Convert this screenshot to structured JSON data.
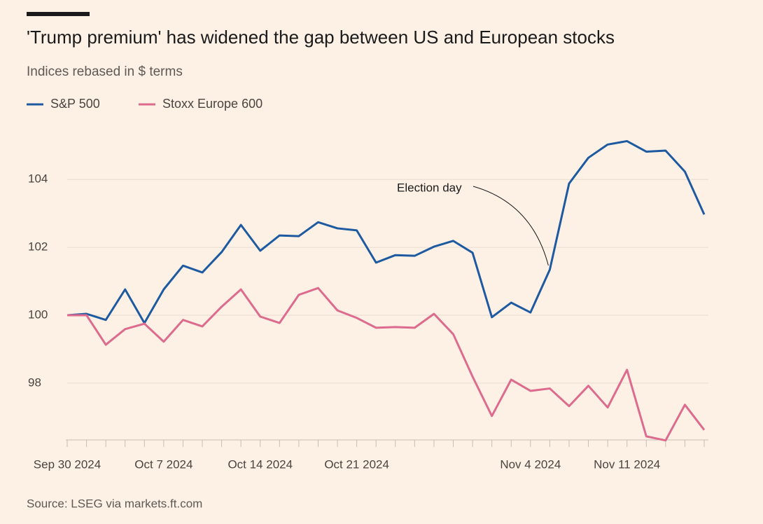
{
  "chart_data": {
    "type": "line",
    "title": "'Trump premium' has widened the gap between US and European stocks",
    "subtitle": "Indices rebased in $ terms",
    "source": "Source: LSEG via markets.ft.com",
    "annotation": "Election day",
    "categories": [
      "Sep 30 2024",
      null,
      null,
      null,
      null,
      "Oct 7 2024",
      null,
      null,
      null,
      null,
      "Oct 14 2024",
      null,
      null,
      null,
      null,
      "Oct 21 2024",
      null,
      null,
      null,
      null,
      null,
      null,
      null,
      null,
      "Nov 4 2024",
      null,
      null,
      null,
      null,
      "Nov 11 2024",
      null,
      null,
      null,
      null
    ],
    "series": [
      {
        "name": "S&P 500",
        "color": "#1e5aa0",
        "values": [
          100,
          100.04,
          99.86,
          100.76,
          99.77,
          100.76,
          101.46,
          101.26,
          101.86,
          102.66,
          101.9,
          102.35,
          102.33,
          102.74,
          102.56,
          102.5,
          101.55,
          101.77,
          101.75,
          102.02,
          102.19,
          101.84,
          99.94,
          100.37,
          100.08,
          101.34,
          103.88,
          104.64,
          105.03,
          105.13,
          104.82,
          104.85,
          104.23,
          102.97
        ]
      },
      {
        "name": "Stoxx Europe 600",
        "color": "#dd6b8e",
        "values": [
          100,
          100,
          99.13,
          99.59,
          99.75,
          99.22,
          99.86,
          99.67,
          100.25,
          100.76,
          99.96,
          99.77,
          100.6,
          100.8,
          100.14,
          99.92,
          99.63,
          99.65,
          99.63,
          100.04,
          99.44,
          98.19,
          97.03,
          98.1,
          97.77,
          97.84,
          97.32,
          97.92,
          97.28,
          98.39,
          96.43,
          96.31,
          97.36,
          96.62
        ]
      }
    ],
    "ylim": [
      96.2,
      105.8
    ],
    "yticks": [
      98,
      100,
      102,
      104
    ],
    "grid": true
  }
}
